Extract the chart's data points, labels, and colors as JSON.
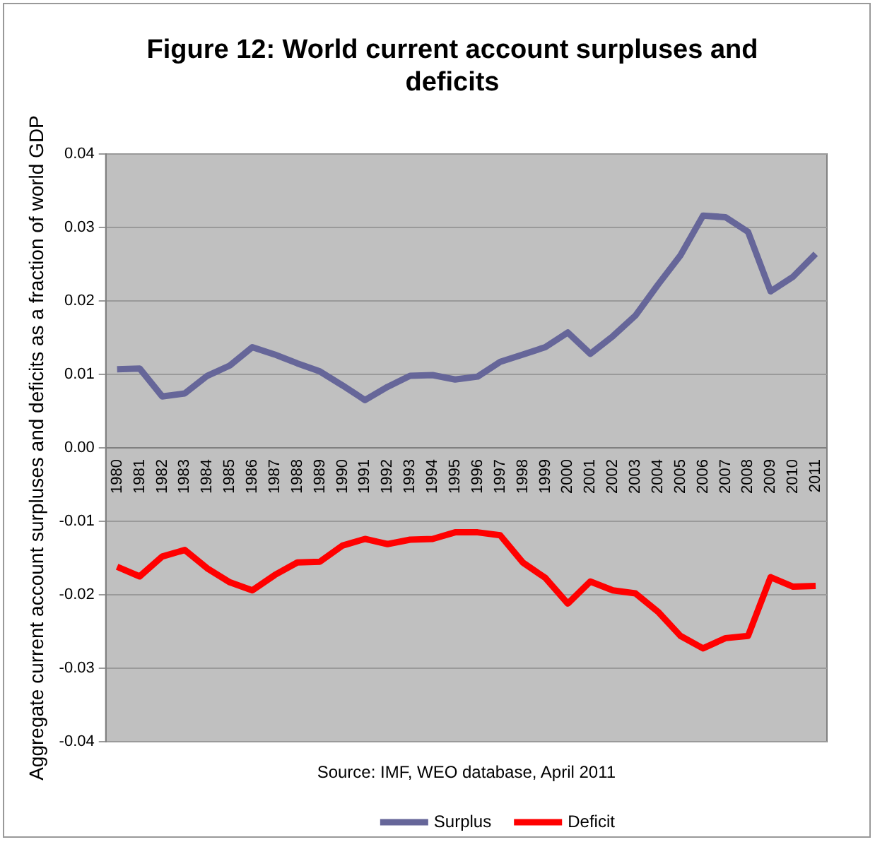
{
  "chart_data": {
    "type": "line",
    "title": "Figure 12: World current account surpluses and deficits",
    "ylabel": "Aggregate current account surpluses and deficits as a fraction of world GDP",
    "categories": [
      "1980",
      "1981",
      "1982",
      "1983",
      "1984",
      "1985",
      "1986",
      "1987",
      "1988",
      "1989",
      "1990",
      "1991",
      "1992",
      "1993",
      "1994",
      "1995",
      "1996",
      "1997",
      "1998",
      "1999",
      "2000",
      "2001",
      "2002",
      "2003",
      "2004",
      "2005",
      "2006",
      "2007",
      "2008",
      "2009",
      "2010",
      "2011"
    ],
    "series": [
      {
        "name": "Surplus",
        "color": "#666699",
        "values": [
          0.0107,
          0.0108,
          0.007,
          0.0074,
          0.0098,
          0.0112,
          0.0137,
          0.0127,
          0.0115,
          0.0104,
          0.0085,
          0.0065,
          0.0083,
          0.0098,
          0.0099,
          0.0093,
          0.0097,
          0.0117,
          0.0127,
          0.0137,
          0.0157,
          0.0128,
          0.0152,
          0.018,
          0.0222,
          0.0262,
          0.0316,
          0.0314,
          0.0294,
          0.0213,
          0.0233,
          0.0264
        ]
      },
      {
        "name": "Deficit",
        "color": "#ff0000",
        "values": [
          -0.0162,
          -0.0175,
          -0.0148,
          -0.0139,
          -0.0164,
          -0.0183,
          -0.0194,
          -0.0173,
          -0.0156,
          -0.0155,
          -0.0133,
          -0.0124,
          -0.0131,
          -0.0125,
          -0.0124,
          -0.0115,
          -0.0115,
          -0.0119,
          -0.0156,
          -0.0177,
          -0.0212,
          -0.0182,
          -0.0194,
          -0.0198,
          -0.0223,
          -0.0256,
          -0.0273,
          -0.0259,
          -0.0256,
          -0.0176,
          -0.0189,
          -0.0188
        ]
      }
    ],
    "ylim": [
      -0.04,
      0.04
    ],
    "yticks": [
      {
        "value": -0.04,
        "label": "-0.04"
      },
      {
        "value": -0.03,
        "label": "-0.03"
      },
      {
        "value": -0.02,
        "label": "-0.02"
      },
      {
        "value": -0.01,
        "label": "-0.01"
      },
      {
        "value": 0,
        "label": "0.00"
      },
      {
        "value": 0.01,
        "label": "0.01"
      },
      {
        "value": 0.02,
        "label": "0.02"
      },
      {
        "value": 0.03,
        "label": "0.03"
      },
      {
        "value": 0.04,
        "label": "0.04"
      }
    ],
    "grid": "y",
    "legend": "bottom",
    "marker": "none",
    "line_style": "solid",
    "annotations": [
      "Source: IMF, WEO database, April 2011"
    ]
  }
}
